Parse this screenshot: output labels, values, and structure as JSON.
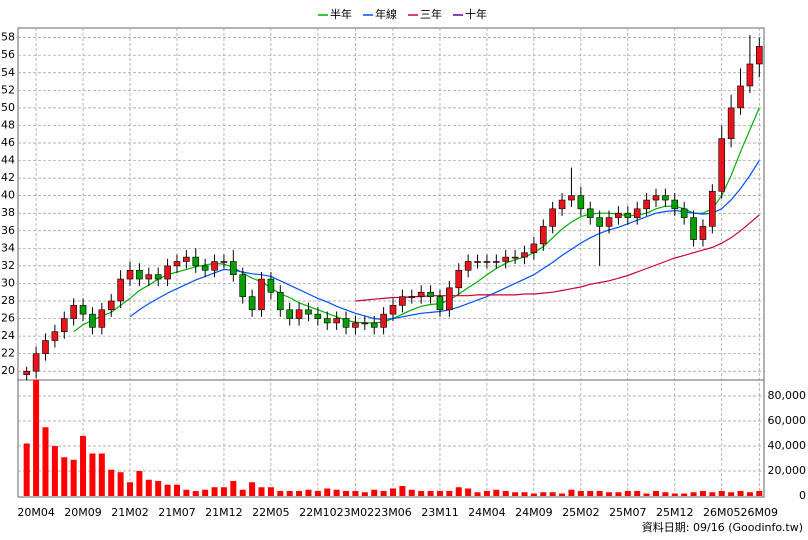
{
  "chart_data": [
    {
      "type": "candlestick",
      "legend": "top",
      "grid": true,
      "up_color": "#e8141b",
      "down_color": "#00a000",
      "categories": [
        null,
        "20M04",
        null,
        null,
        null,
        null,
        "20M09",
        null,
        null,
        null,
        null,
        "21M02",
        null,
        null,
        null,
        null,
        "21M07",
        null,
        null,
        null,
        null,
        "21M12",
        null,
        null,
        null,
        null,
        "22M05",
        null,
        null,
        null,
        null,
        "22M10",
        null,
        null,
        null,
        "23M02",
        null,
        null,
        null,
        "23M06",
        null,
        null,
        null,
        null,
        "23M11",
        null,
        null,
        null,
        null,
        "24M04",
        null,
        null,
        null,
        null,
        "24M09",
        null,
        null,
        null,
        null,
        "25M02",
        null,
        null,
        null,
        null,
        "25M07",
        null,
        null,
        null,
        null,
        "25M12",
        null,
        null,
        null,
        null,
        "26M05",
        null,
        null,
        null,
        "26M09"
      ],
      "open": [
        19.6,
        20,
        22,
        23.5,
        24.5,
        26,
        27.5,
        26.5,
        25,
        27,
        28,
        30.5,
        31.5,
        30.5,
        31,
        30.5,
        32,
        32.5,
        33,
        32,
        31.5,
        32.5,
        32.5,
        31,
        28.5,
        27,
        30.5,
        29,
        27,
        26,
        27,
        26.5,
        26,
        25.5,
        26,
        25,
        25.5,
        25.5,
        25,
        26.5,
        27.5,
        28.5,
        28.5,
        29,
        28.5,
        27,
        29.5,
        31.5,
        32.5,
        32.5,
        32.5,
        32.5,
        33,
        33,
        33.5,
        34.5,
        36.5,
        38.5,
        39.5,
        40,
        38.5,
        37.5,
        36.5,
        37.5,
        38,
        37.5,
        38.5,
        39.5,
        40,
        39.5,
        38.5,
        37.5,
        35,
        36.5,
        40.5,
        46.5,
        50,
        52.5,
        55
      ],
      "high": [
        20.5,
        22.8,
        24.3,
        25.3,
        26.8,
        28.3,
        28.3,
        27.3,
        27.8,
        28.8,
        31.5,
        32.5,
        32.3,
        31.8,
        31.8,
        32.8,
        33.3,
        33.8,
        34,
        32.8,
        33.3,
        33.3,
        33.8,
        31.8,
        29.3,
        31.3,
        31.3,
        29.8,
        27.8,
        27.8,
        27.8,
        27.3,
        26.8,
        26.8,
        26.8,
        26.3,
        26.3,
        26.3,
        27.3,
        28.3,
        29.3,
        29.3,
        29.8,
        29.8,
        29.3,
        30.3,
        32.3,
        33.3,
        33.3,
        33.3,
        33.3,
        33.8,
        33.8,
        34.3,
        35.3,
        37.3,
        39.3,
        40.3,
        43.2,
        41,
        39.3,
        38.3,
        38.3,
        38.8,
        38.8,
        39.3,
        40.3,
        40.8,
        40.8,
        40.3,
        39.3,
        38.3,
        37.3,
        41.3,
        48,
        51.5,
        54.5,
        58.3,
        58
      ],
      "low": [
        19,
        19.2,
        21.2,
        22.7,
        23.7,
        25.2,
        25.7,
        24.2,
        24.2,
        26.2,
        27.2,
        29.7,
        29.7,
        29.7,
        29.7,
        29.7,
        31.2,
        31.7,
        31.2,
        30.7,
        30.7,
        31.7,
        30.2,
        27.7,
        26.2,
        26.2,
        28.2,
        26.2,
        25.2,
        25.2,
        25.7,
        25.2,
        24.7,
        24.7,
        24.2,
        24.2,
        24.7,
        24.2,
        24.2,
        25.7,
        26.7,
        27.7,
        27.7,
        27.7,
        26.2,
        26.2,
        28.7,
        30.7,
        31.7,
        31.7,
        31.7,
        31.7,
        32.2,
        32.2,
        32.7,
        33.7,
        35.7,
        37.7,
        38.7,
        37.7,
        36.7,
        32,
        35.7,
        36.7,
        36.7,
        36.7,
        37.7,
        38.7,
        38.7,
        37.7,
        36.7,
        34.2,
        34.2,
        35.7,
        39.7,
        45.5,
        49.2,
        51.7,
        53.5
      ],
      "close": [
        20,
        22,
        23.5,
        24.5,
        26,
        27.5,
        26.5,
        25,
        27,
        28,
        30.5,
        31.5,
        30.5,
        31,
        30.5,
        32,
        32.5,
        33,
        32,
        31.5,
        32.5,
        32.5,
        31,
        28.5,
        27,
        30.5,
        29,
        27,
        26,
        27,
        26.5,
        26,
        25.5,
        26,
        25,
        25.5,
        25.5,
        25,
        26.5,
        27.5,
        28.5,
        28.5,
        29,
        28.5,
        27,
        29.5,
        31.5,
        32.5,
        32.5,
        32.5,
        32.5,
        33,
        33,
        33.5,
        34.5,
        36.5,
        38.5,
        39.5,
        40,
        38.5,
        37.5,
        36.5,
        37.5,
        38,
        37.5,
        38.5,
        39.5,
        40,
        39.5,
        38.5,
        37.5,
        35,
        36.5,
        40.5,
        46.5,
        50,
        52.5,
        55,
        57
      ],
      "series": [
        {
          "name": "半年",
          "color": "#00b000",
          "values": [
            null,
            null,
            null,
            null,
            null,
            24.5,
            25.3,
            25.8,
            26.3,
            26.7,
            27.5,
            28.3,
            29.2,
            29.8,
            30.5,
            31,
            31.3,
            31.6,
            31.9,
            32.1,
            32.3,
            32.2,
            31.8,
            31.2,
            30.6,
            30.2,
            29.5,
            28.8,
            28.4,
            27.8,
            27.4,
            27,
            26.6,
            26.2,
            25.8,
            25.6,
            25.5,
            25.5,
            25.6,
            26,
            26.5,
            27,
            27.4,
            27.6,
            27.7,
            28.1,
            28.8,
            29.5,
            30.2,
            31,
            31.7,
            32.3,
            32.7,
            33,
            33.5,
            34.2,
            35.2,
            36.2,
            37,
            37.6,
            37.9,
            38,
            38,
            37.9,
            37.7,
            37.8,
            38,
            38.5,
            38.8,
            38.8,
            38.5,
            38,
            38,
            38.5,
            40,
            42.3,
            45,
            47.5,
            50
          ]
        },
        {
          "name": "年線",
          "color": "#0050ff",
          "values": [
            null,
            null,
            null,
            null,
            null,
            null,
            null,
            null,
            null,
            null,
            null,
            26.2,
            27,
            27.7,
            28.3,
            28.9,
            29.4,
            29.9,
            30.4,
            30.8,
            31.2,
            31.6,
            31.5,
            31.3,
            31.1,
            31,
            30.8,
            30.3,
            29.8,
            29.3,
            28.8,
            28.3,
            27.9,
            27.4,
            27,
            26.6,
            26.3,
            26,
            25.9,
            26,
            26.2,
            26.4,
            26.6,
            26.7,
            26.8,
            27,
            27.3,
            27.7,
            28.1,
            28.5,
            29,
            29.5,
            30,
            30.5,
            31,
            31.7,
            32.4,
            33.2,
            33.9,
            34.6,
            35.2,
            35.7,
            36.1,
            36.4,
            36.8,
            37.2,
            37.6,
            38,
            38.2,
            38.3,
            38.2,
            38,
            37.9,
            38,
            38.5,
            39.5,
            40.8,
            42.3,
            44
          ]
        },
        {
          "name": "三年",
          "color": "#cc0033",
          "values": [
            null,
            null,
            null,
            null,
            null,
            null,
            null,
            null,
            null,
            null,
            null,
            null,
            null,
            null,
            null,
            null,
            null,
            null,
            null,
            null,
            null,
            null,
            null,
            null,
            null,
            null,
            null,
            null,
            null,
            null,
            null,
            null,
            null,
            null,
            null,
            28,
            28.1,
            28.2,
            28.3,
            28.4,
            28.4,
            28.5,
            28.5,
            28.6,
            28.6,
            28.6,
            28.6,
            28.6,
            28.7,
            28.7,
            28.7,
            28.7,
            28.7,
            28.8,
            28.8,
            28.9,
            29,
            29.2,
            29.4,
            29.6,
            29.9,
            30.1,
            30.3,
            30.6,
            30.9,
            31.3,
            31.7,
            32.1,
            32.5,
            32.9,
            33.2,
            33.5,
            33.8,
            34.1,
            34.6,
            35.2,
            36,
            36.9,
            37.8
          ]
        },
        {
          "name": "十年",
          "color": "#660099",
          "values": [
            null,
            null,
            null,
            null,
            null,
            null,
            null,
            null,
            null,
            null,
            null,
            null,
            null,
            null,
            null,
            null,
            null,
            null,
            null,
            null,
            null,
            null,
            null,
            null,
            null,
            null,
            null,
            null,
            null,
            null,
            null,
            null,
            null,
            null,
            null,
            null,
            null,
            null,
            null,
            null,
            null,
            null,
            null,
            null,
            null,
            null,
            null,
            null,
            null,
            null,
            null,
            null,
            null,
            null,
            null,
            null,
            null,
            null,
            null,
            null,
            null,
            null,
            null,
            null,
            null,
            null,
            null,
            null,
            null,
            null,
            null,
            null,
            null,
            null,
            null,
            null,
            null,
            null,
            null
          ]
        }
      ],
      "ylim": [
        19,
        59.1
      ],
      "yticks": [
        20,
        22,
        24,
        26,
        28,
        30,
        32,
        34,
        36,
        38,
        40,
        42,
        44,
        46,
        48,
        50,
        52,
        54,
        56,
        58
      ]
    },
    {
      "type": "bar",
      "color": "#ff0000",
      "grid": true,
      "values": [
        42000,
        93000,
        55000,
        40000,
        31000,
        29000,
        48000,
        34000,
        34000,
        21000,
        19000,
        11000,
        20000,
        13000,
        12000,
        9000,
        9000,
        5000,
        4000,
        5000,
        7000,
        7000,
        12000,
        5000,
        11000,
        7000,
        7000,
        4000,
        4000,
        4000,
        5000,
        4000,
        6000,
        5000,
        4000,
        4000,
        3000,
        5000,
        4000,
        6000,
        8000,
        5000,
        4000,
        4000,
        4000,
        4000,
        7000,
        6000,
        3000,
        4000,
        5000,
        4000,
        3000,
        3000,
        2000,
        3000,
        3000,
        2000,
        5000,
        4000,
        4000,
        4000,
        3000,
        3000,
        4000,
        4000,
        2000,
        4000,
        3000,
        2000,
        2000,
        3000,
        4000,
        3000,
        4000,
        3000,
        4000,
        3000,
        4000
      ],
      "ylim": [
        0,
        92800
      ],
      "yticks": [
        0,
        {
          "value": 20000,
          "label": "20,000"
        },
        {
          "value": 40000,
          "label": "40,000"
        },
        {
          "value": 60000,
          "label": "60,000"
        },
        {
          "value": 80000,
          "label": "80,000"
        }
      ],
      "source": "資料日期: 09/16 (Goodinfo.tw)"
    }
  ]
}
